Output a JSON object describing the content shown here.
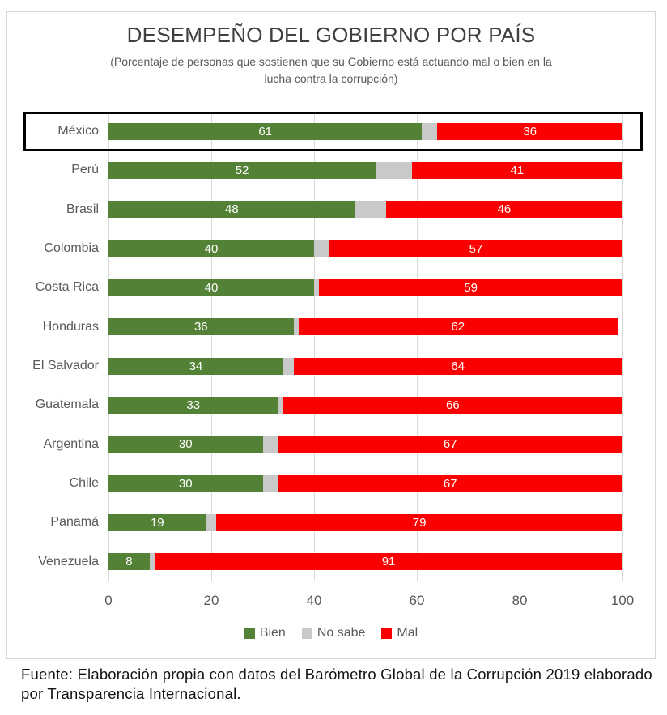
{
  "title": "DESEMPEÑO DEL GOBIERNO POR PAÍS",
  "subtitle": "(Porcentaje de personas que sostienen que su Gobierno está actuando mal o bien en la lucha contra la corrupción)",
  "footer": "Fuente: Elaboración propia con datos del Barómetro Global de la Corrupción 2019 elaborado por Transparencia Internacional.",
  "colors": {
    "bien": "#538135",
    "no_sabe": "#c9c9c9",
    "mal": "#fb0000",
    "gridline": "#d9d9d9",
    "axis_text": "#595959",
    "bar_label_text": "#ffffff",
    "highlight_border": "#000000"
  },
  "chart_data": {
    "type": "bar",
    "orientation": "horizontal",
    "stacked": true,
    "title": "DESEMPEÑO DEL GOBIERNO POR PAÍS",
    "subtitle": "(Porcentaje de personas que sostienen que su Gobierno está actuando mal o bien en la lucha contra la corrupción)",
    "categories": [
      "México",
      "Perú",
      "Brasil",
      "Colombia",
      "Costa Rica",
      "Honduras",
      "El Salvador",
      "Guatemala",
      "Argentina",
      "Chile",
      "Panamá",
      "Venezuela"
    ],
    "series": [
      {
        "name": "Bien",
        "color": "#538135",
        "show_labels": true,
        "values": [
          61,
          52,
          48,
          40,
          40,
          36,
          34,
          33,
          30,
          30,
          19,
          8
        ]
      },
      {
        "name": "No sabe",
        "color": "#c9c9c9",
        "show_labels": false,
        "values": [
          3,
          7,
          6,
          3,
          1,
          1,
          2,
          1,
          3,
          3,
          2,
          1
        ]
      },
      {
        "name": "Mal",
        "color": "#fb0000",
        "show_labels": true,
        "values": [
          36,
          41,
          46,
          57,
          59,
          62,
          64,
          66,
          67,
          67,
          79,
          91
        ]
      }
    ],
    "x_ticks": [
      0,
      20,
      40,
      60,
      80,
      100
    ],
    "xlim": [
      0,
      100
    ],
    "grid": true,
    "legend_position": "bottom",
    "legend_items": [
      "Bien",
      "No sabe",
      "Mal"
    ],
    "highlighted_category": "México"
  }
}
